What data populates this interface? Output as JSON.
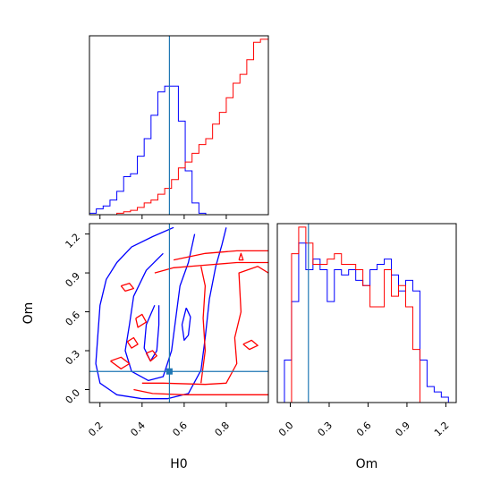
{
  "chart_data": [
    {
      "panel": "H0 marginal",
      "type": "step-histogram",
      "xlim": [
        0.15,
        1.0
      ],
      "bin_edges": [
        0.15,
        0.1825,
        0.215,
        0.2475,
        0.28,
        0.3125,
        0.345,
        0.3775,
        0.41,
        0.4425,
        0.475,
        0.5075,
        0.54,
        0.5725,
        0.605,
        0.6375,
        0.67,
        0.7025,
        0.735,
        0.7675,
        0.8,
        0.8325,
        0.865,
        0.8975,
        0.93,
        0.9625,
        1.0
      ],
      "series": [
        {
          "color": "#0000ff",
          "values": [
            0.5,
            2,
            3,
            5,
            8,
            13,
            14,
            20,
            26,
            34,
            42,
            44,
            44,
            32,
            15,
            4,
            0.5,
            0,
            0,
            0,
            0,
            0,
            0,
            0,
            0,
            0
          ]
        },
        {
          "color": "#ff0000",
          "values": [
            0,
            0,
            0,
            0,
            0.5,
            1,
            1.5,
            2.5,
            4,
            5,
            7,
            9,
            12,
            16,
            18,
            21,
            24,
            26,
            31,
            35,
            40,
            45,
            48,
            53,
            59,
            60
          ]
        }
      ],
      "reference_line": {
        "x": 0.53,
        "color": "#1f77b4"
      }
    },
    {
      "panel": "Om vs H0 joint",
      "type": "contour",
      "xlabel": "H0",
      "ylabel": "Om",
      "xlim": [
        0.15,
        1.0
      ],
      "ylim": [
        -0.1,
        1.28
      ],
      "xticks": [
        "0.2",
        "0.4",
        "0.6",
        "0.8"
      ],
      "yticks": [
        "0.0",
        "0.3",
        "0.6",
        "0.9",
        "1.2"
      ],
      "reference_point": {
        "x": 0.53,
        "y": 0.14,
        "color": "#1f77b4"
      },
      "contours": [
        {
          "color": "#0000ff",
          "points": [
            [
              0.55,
              1.25
            ],
            [
              0.45,
              1.18
            ],
            [
              0.35,
              1.1
            ],
            [
              0.28,
              0.98
            ],
            [
              0.23,
              0.85
            ],
            [
              0.2,
              0.65
            ],
            [
              0.19,
              0.42
            ],
            [
              0.18,
              0.2
            ],
            [
              0.2,
              0.05
            ],
            [
              0.28,
              -0.04
            ],
            [
              0.4,
              -0.07
            ],
            [
              0.52,
              -0.07
            ],
            [
              0.62,
              -0.03
            ],
            [
              0.68,
              0.15
            ],
            [
              0.7,
              0.4
            ],
            [
              0.72,
              0.7
            ],
            [
              0.75,
              0.95
            ],
            [
              0.78,
              1.12
            ],
            [
              0.8,
              1.25
            ]
          ]
        },
        {
          "color": "#0000ff",
          "points": [
            [
              0.5,
              1.05
            ],
            [
              0.42,
              0.92
            ],
            [
              0.36,
              0.72
            ],
            [
              0.34,
              0.5
            ],
            [
              0.32,
              0.3
            ],
            [
              0.35,
              0.14
            ],
            [
              0.43,
              0.07
            ],
            [
              0.5,
              0.1
            ],
            [
              0.54,
              0.3
            ],
            [
              0.56,
              0.55
            ],
            [
              0.58,
              0.8
            ],
            [
              0.62,
              0.98
            ],
            [
              0.65,
              1.2
            ]
          ]
        },
        {
          "color": "#0000ff",
          "points": [
            [
              0.46,
              0.65
            ],
            [
              0.42,
              0.5
            ],
            [
              0.41,
              0.32
            ],
            [
              0.44,
              0.22
            ],
            [
              0.47,
              0.3
            ],
            [
              0.48,
              0.5
            ],
            [
              0.48,
              0.65
            ]
          ]
        },
        {
          "color": "#0000ff",
          "points": [
            [
              0.61,
              0.63
            ],
            [
              0.59,
              0.5
            ],
            [
              0.6,
              0.38
            ],
            [
              0.62,
              0.42
            ],
            [
              0.63,
              0.56
            ],
            [
              0.61,
              0.63
            ]
          ]
        },
        {
          "color": "#ff0000",
          "points": [
            [
              0.55,
              1.0
            ],
            [
              0.7,
              1.05
            ],
            [
              0.85,
              1.07
            ],
            [
              1.0,
              1.07
            ]
          ]
        },
        {
          "color": "#ff0000",
          "points": [
            [
              0.46,
              0.9
            ],
            [
              0.55,
              0.94
            ],
            [
              0.7,
              0.96
            ],
            [
              0.85,
              0.98
            ],
            [
              1.0,
              0.98
            ]
          ]
        },
        {
          "color": "#ff0000",
          "points": [
            [
              0.36,
              0.0
            ],
            [
              0.45,
              -0.03
            ],
            [
              0.6,
              -0.04
            ],
            [
              0.8,
              -0.04
            ],
            [
              1.0,
              -0.04
            ]
          ]
        },
        {
          "color": "#ff0000",
          "points": [
            [
              0.4,
              0.05
            ],
            [
              0.5,
              0.05
            ],
            [
              0.7,
              0.04
            ],
            [
              0.8,
              0.05
            ],
            [
              0.85,
              0.2
            ],
            [
              0.84,
              0.4
            ],
            [
              0.87,
              0.6
            ],
            [
              0.86,
              0.9
            ],
            [
              0.95,
              0.95
            ],
            [
              1.0,
              0.9
            ]
          ]
        },
        {
          "color": "#ff0000",
          "points": [
            [
              0.68,
              0.05
            ],
            [
              0.7,
              0.3
            ],
            [
              0.69,
              0.55
            ],
            [
              0.7,
              0.8
            ],
            [
              0.68,
              0.95
            ]
          ]
        },
        {
          "color": "#ff0000",
          "points": [
            [
              0.37,
              0.55
            ],
            [
              0.4,
              0.58
            ],
            [
              0.42,
              0.52
            ],
            [
              0.38,
              0.48
            ],
            [
              0.37,
              0.55
            ]
          ]
        },
        {
          "color": "#ff0000",
          "points": [
            [
              0.33,
              0.37
            ],
            [
              0.36,
              0.4
            ],
            [
              0.38,
              0.35
            ],
            [
              0.35,
              0.32
            ],
            [
              0.33,
              0.37
            ]
          ]
        },
        {
          "color": "#ff0000",
          "points": [
            [
              0.25,
              0.22
            ],
            [
              0.3,
              0.25
            ],
            [
              0.34,
              0.2
            ],
            [
              0.3,
              0.16
            ],
            [
              0.25,
              0.22
            ]
          ]
        },
        {
          "color": "#ff0000",
          "points": [
            [
              0.3,
              0.8
            ],
            [
              0.34,
              0.82
            ],
            [
              0.36,
              0.78
            ],
            [
              0.32,
              0.76
            ],
            [
              0.3,
              0.8
            ]
          ]
        },
        {
          "color": "#ff0000",
          "points": [
            [
              0.88,
              0.35
            ],
            [
              0.92,
              0.38
            ],
            [
              0.95,
              0.34
            ],
            [
              0.91,
              0.31
            ],
            [
              0.88,
              0.35
            ]
          ]
        },
        {
          "color": "#ff0000",
          "points": [
            [
              0.86,
              1.0
            ],
            [
              0.87,
              1.05
            ],
            [
              0.88,
              1.0
            ],
            [
              0.86,
              1.0
            ]
          ]
        },
        {
          "color": "#ff0000",
          "points": [
            [
              0.42,
              0.28
            ],
            [
              0.45,
              0.3
            ],
            [
              0.47,
              0.26
            ],
            [
              0.44,
              0.22
            ],
            [
              0.42,
              0.28
            ]
          ]
        }
      ]
    },
    {
      "panel": "Om marginal",
      "type": "step-histogram",
      "xlabel": "Om",
      "xlim": [
        -0.1,
        1.28
      ],
      "xticks": [
        "0.0",
        "0.3",
        "0.6",
        "0.9",
        "1.2"
      ],
      "bin_edges": [
        -0.1,
        -0.045,
        0.01,
        0.065,
        0.12,
        0.175,
        0.23,
        0.285,
        0.34,
        0.395,
        0.45,
        0.505,
        0.56,
        0.615,
        0.67,
        0.725,
        0.78,
        0.835,
        0.89,
        0.945,
        1.0,
        1.055,
        1.11,
        1.165,
        1.22,
        1.275
      ],
      "series": [
        {
          "color": "#0000ff",
          "values": [
            0,
            8,
            19,
            30,
            25,
            27,
            25,
            19,
            25,
            24,
            25,
            23,
            22,
            25,
            26,
            27,
            24,
            21,
            23,
            21,
            8,
            3,
            2,
            1,
            0
          ]
        },
        {
          "color": "#ff0000",
          "values": [
            0,
            0,
            28,
            33,
            30,
            26,
            26,
            27,
            28,
            26,
            26,
            25,
            22,
            18,
            18,
            25,
            20,
            22,
            18,
            10,
            0,
            0,
            0,
            0,
            0
          ]
        }
      ],
      "reference_line": {
        "x": 0.14,
        "color": "#1f77b4"
      }
    }
  ]
}
